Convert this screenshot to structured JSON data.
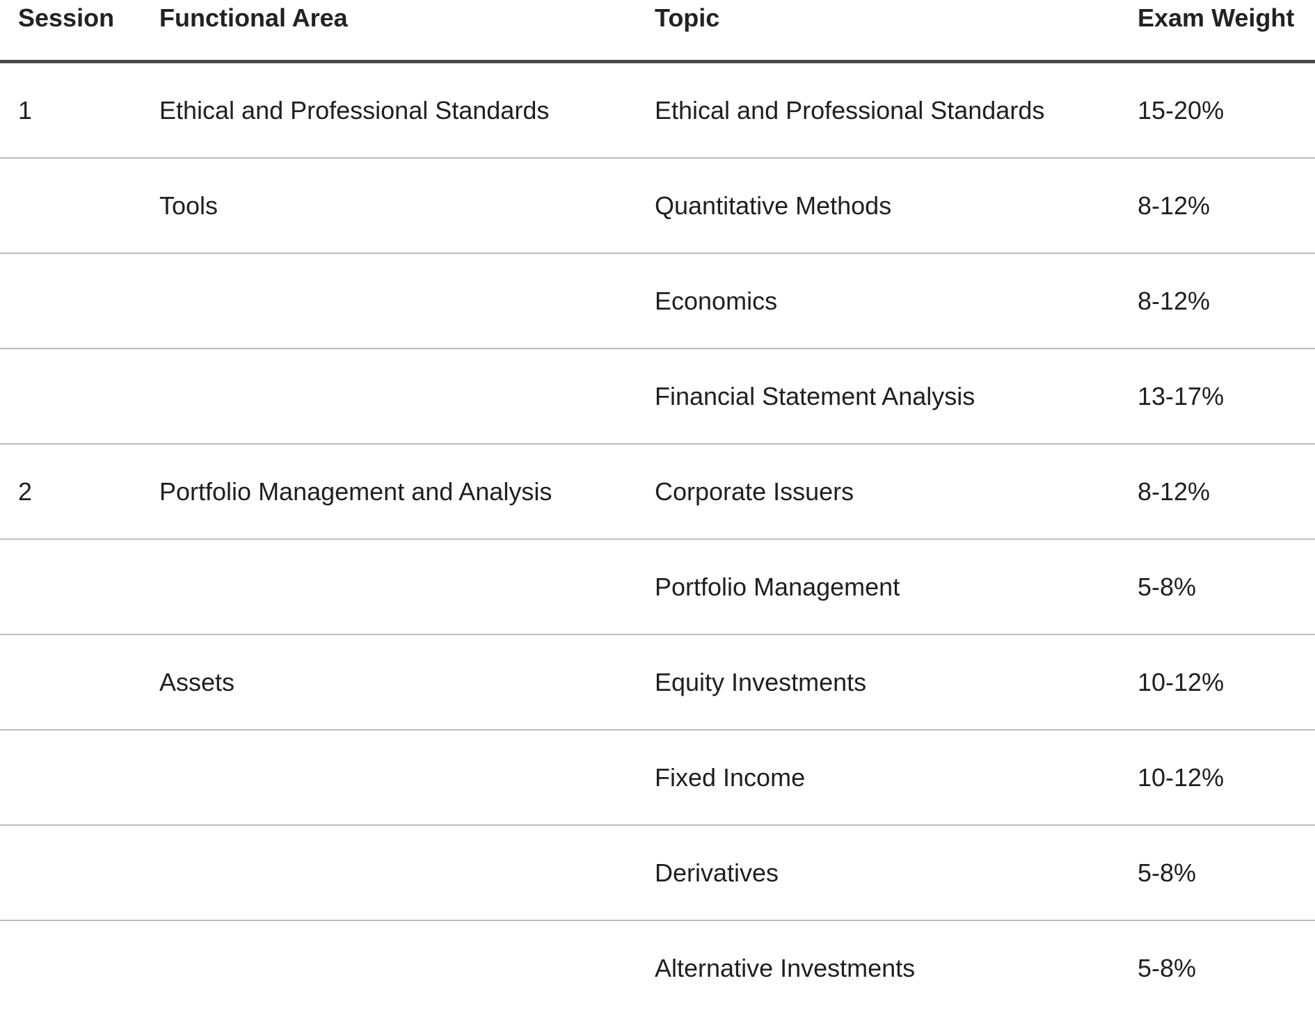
{
  "table": {
    "headers": {
      "session": "Session",
      "functional_area": "Functional Area",
      "topic": "Topic",
      "exam_weight": "Exam Weight"
    },
    "rows": [
      {
        "session": "1",
        "functional_area": "Ethical and Professional Standards",
        "topic": "Ethical and Professional Standards",
        "exam_weight": "15-20%"
      },
      {
        "session": "",
        "functional_area": "Tools",
        "topic": "Quantitative Methods",
        "exam_weight": "8-12%"
      },
      {
        "session": "",
        "functional_area": "",
        "topic": "Economics",
        "exam_weight": "8-12%"
      },
      {
        "session": "",
        "functional_area": "",
        "topic": "Financial Statement Analysis",
        "exam_weight": "13-17%"
      },
      {
        "session": "2",
        "functional_area": "Portfolio Management and Analysis",
        "topic": "Corporate Issuers",
        "exam_weight": "8-12%"
      },
      {
        "session": "",
        "functional_area": "",
        "topic": "Portfolio Management",
        "exam_weight": "5-8%"
      },
      {
        "session": "",
        "functional_area": "Assets",
        "topic": "Equity Investments",
        "exam_weight": "10-12%"
      },
      {
        "session": "",
        "functional_area": "",
        "topic": "Fixed Income",
        "exam_weight": "10-12%"
      },
      {
        "session": "",
        "functional_area": "",
        "topic": "Derivatives",
        "exam_weight": "5-8%"
      },
      {
        "session": "",
        "functional_area": "",
        "topic": "Alternative Investments",
        "exam_weight": "5-8%"
      }
    ]
  }
}
